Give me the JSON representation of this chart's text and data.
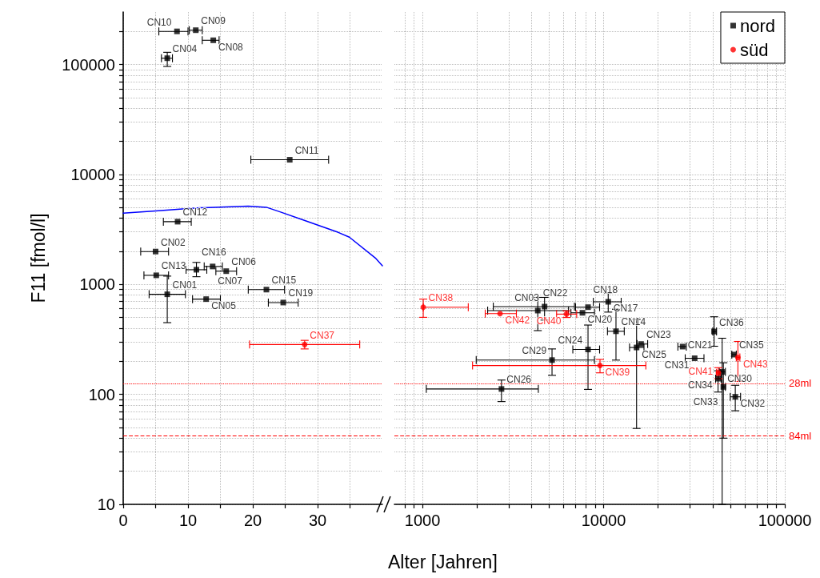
{
  "chart_data": [
    {
      "type": "scatter",
      "ylabel": "F11 [fmol/l]",
      "xlabel": "Alter [Jahren]",
      "log": "y",
      "grid": true,
      "legend": false,
      "xlim": [
        0,
        40
      ],
      "xticks": [
        0,
        {
          "value": 5,
          "label": null
        },
        10,
        {
          "value": 15,
          "label": null
        },
        20,
        {
          "value": 25,
          "label": null
        },
        30,
        {
          "value": 35,
          "label": null
        }
      ],
      "ylim": [
        10,
        300000
      ],
      "yticks": [
        10,
        {
          "value": 20,
          "label": null
        },
        {
          "value": 30,
          "label": null
        },
        {
          "value": 40,
          "label": null
        },
        {
          "value": 50,
          "label": null
        },
        {
          "value": 60,
          "label": null
        },
        {
          "value": 70,
          "label": null
        },
        {
          "value": 80,
          "label": null
        },
        {
          "value": 90,
          "label": null
        },
        100,
        {
          "value": 200,
          "label": null
        },
        {
          "value": 300,
          "label": null
        },
        {
          "value": 400,
          "label": null
        },
        {
          "value": 500,
          "label": null
        },
        {
          "value": 600,
          "label": null
        },
        {
          "value": 700,
          "label": null
        },
        {
          "value": 800,
          "label": null
        },
        {
          "value": 900,
          "label": null
        },
        1000,
        {
          "value": 2000,
          "label": null
        },
        {
          "value": 3000,
          "label": null
        },
        {
          "value": 4000,
          "label": null
        },
        {
          "value": 5000,
          "label": null
        },
        {
          "value": 6000,
          "label": null
        },
        {
          "value": 7000,
          "label": null
        },
        {
          "value": 8000,
          "label": null
        },
        {
          "value": 9000,
          "label": null
        },
        10000,
        {
          "value": 20000,
          "label": null
        },
        {
          "value": 30000,
          "label": null
        },
        {
          "value": 40000,
          "label": null
        },
        {
          "value": 50000,
          "label": null
        },
        {
          "value": 60000,
          "label": null
        },
        {
          "value": 70000,
          "label": null
        },
        {
          "value": 80000,
          "label": null
        },
        {
          "value": 90000,
          "label": null
        },
        100000,
        {
          "value": 200000,
          "label": null
        }
      ],
      "ref_lines": [
        {
          "axis": "y",
          "value": 126,
          "label": null,
          "color": "#ff0000",
          "line_style": "dotted"
        },
        {
          "axis": "y",
          "value": 42,
          "label": null,
          "color": "#ff0000",
          "line_style": "dashed"
        }
      ],
      "series": [
        {
          "color": "#000000",
          "marker": "square",
          "x": [
            8.3,
            11.2,
            13.9,
            6.8,
            25.7,
            8.4,
            5.0,
            5.1,
            6.8,
            11.3,
            13.8,
            15.9,
            12.8,
            22.1,
            24.7
          ],
          "values": [
            200000,
            205000,
            166000,
            114000,
            13600,
            3720,
            1990,
            1210,
            813,
            1360,
            1456,
            1320,
            735,
            897,
            684
          ],
          "value_labels": [
            "CN10",
            "CN09",
            "CN08",
            "CN04",
            "CN11",
            "CN12",
            "CN02",
            "CN13",
            "CN01",
            "CN16",
            "CN07",
            "CN06",
            "CN05",
            "CN15",
            "CN19"
          ],
          "xerrors": [
            [
              5.5,
              10.0
            ],
            [
              10.2,
              12.2
            ],
            [
              12.2,
              14.8
            ],
            [
              5.9,
              7.6
            ],
            [
              19.7,
              31.7
            ],
            [
              6.2,
              10.5
            ],
            [
              2.7,
              7.0
            ],
            [
              3.2,
              7.0
            ],
            [
              4.0,
              9.6
            ],
            [
              9.7,
              12.9
            ],
            [
              12.5,
              15.3
            ],
            [
              14.3,
              17.5
            ],
            [
              10.7,
              15.0
            ],
            [
              19.3,
              24.9
            ],
            [
              22.4,
              27.0
            ]
          ],
          "errors": [
            null,
            null,
            null,
            [
              96000,
              129000
            ],
            null,
            null,
            null,
            null,
            [
              449,
              1190
            ],
            [
              1175,
              1585
            ],
            null,
            null,
            null,
            null,
            null
          ]
        },
        {
          "color": "#ff0000",
          "marker": "circle",
          "x": [
            28.0
          ],
          "values": [
            284
          ],
          "value_labels": [
            "CN37"
          ],
          "xerrors": [
            [
              19.5,
              36.5
            ]
          ],
          "errors": [
            [
              259,
              310
            ]
          ]
        },
        {
          "type": "line",
          "color": "#0000ff",
          "marker": "none",
          "x": [
            0,
            5,
            10,
            11.9,
            19.3,
            22.1,
            24.2,
            28.3,
            33.2,
            34.9,
            39.0,
            40
          ],
          "values": [
            4450,
            4650,
            4900,
            4980,
            5140,
            5030,
            4570,
            3760,
            2970,
            2690,
            1720,
            1480
          ]
        }
      ]
    },
    {
      "type": "scatter",
      "log": "xy",
      "grid": true,
      "legend": "top right",
      "tick_labels": "x",
      "xlim": [
        700,
        100000
      ],
      "xticks": [
        {
          "value": 800,
          "label": null
        },
        {
          "value": 900,
          "label": null
        },
        1000,
        {
          "value": 2000,
          "label": null
        },
        {
          "value": 3000,
          "label": null
        },
        {
          "value": 4000,
          "label": null
        },
        {
          "value": 5000,
          "label": null
        },
        {
          "value": 6000,
          "label": null
        },
        {
          "value": 7000,
          "label": null
        },
        {
          "value": 8000,
          "label": null
        },
        {
          "value": 9000,
          "label": null
        },
        10000,
        {
          "value": 20000,
          "label": null
        },
        {
          "value": 30000,
          "label": null
        },
        {
          "value": 40000,
          "label": null
        },
        {
          "value": 50000,
          "label": null
        },
        {
          "value": 60000,
          "label": null
        },
        {
          "value": 70000,
          "label": null
        },
        {
          "value": 80000,
          "label": null
        },
        {
          "value": 90000,
          "label": null
        },
        100000
      ],
      "ylim": [
        10,
        300000
      ],
      "yticks": [
        10,
        {
          "value": 20,
          "label": null
        },
        {
          "value": 30,
          "label": null
        },
        {
          "value": 40,
          "label": null
        },
        {
          "value": 50,
          "label": null
        },
        {
          "value": 60,
          "label": null
        },
        {
          "value": 70,
          "label": null
        },
        {
          "value": 80,
          "label": null
        },
        {
          "value": 90,
          "label": null
        },
        100,
        {
          "value": 200,
          "label": null
        },
        {
          "value": 300,
          "label": null
        },
        {
          "value": 400,
          "label": null
        },
        {
          "value": 500,
          "label": null
        },
        {
          "value": 600,
          "label": null
        },
        {
          "value": 700,
          "label": null
        },
        {
          "value": 800,
          "label": null
        },
        {
          "value": 900,
          "label": null
        },
        1000,
        {
          "value": 2000,
          "label": null
        },
        {
          "value": 3000,
          "label": null
        },
        {
          "value": 4000,
          "label": null
        },
        {
          "value": 5000,
          "label": null
        },
        {
          "value": 6000,
          "label": null
        },
        {
          "value": 7000,
          "label": null
        },
        {
          "value": 8000,
          "label": null
        },
        {
          "value": 9000,
          "label": null
        },
        10000,
        {
          "value": 20000,
          "label": null
        },
        {
          "value": 30000,
          "label": null
        },
        {
          "value": 40000,
          "label": null
        },
        {
          "value": 50000,
          "label": null
        },
        {
          "value": 60000,
          "label": null
        },
        {
          "value": 70000,
          "label": null
        },
        {
          "value": 80000,
          "label": null
        },
        {
          "value": 90000,
          "label": null
        },
        100000,
        {
          "value": 200000,
          "label": null
        }
      ],
      "ref_lines": [
        {
          "axis": "y",
          "value": 126,
          "label": "28ml",
          "color": "#ff0000",
          "line_style": "dotted"
        },
        {
          "axis": "y",
          "value": 42,
          "label": "84ml",
          "color": "#ff0000",
          "line_style": "dashed"
        }
      ],
      "series": [
        {
          "name": "nord",
          "color": "#000000",
          "marker": "square",
          "x": [
            4330,
            4720,
            8200,
            7640,
            10600,
            11700,
            8200,
            5190,
            2730,
            15200,
            16100,
            27300,
            31800,
            40700,
            52400,
            42800,
            45100,
            45800,
            53300
          ],
          "values": [
            578,
            628,
            621,
            552,
            695,
            375,
            256,
            205,
            112,
            267,
            287,
            272,
            213,
            373,
            230,
            139,
            160,
            117,
            95
          ],
          "value_labels": [
            "CN22",
            "CN03",
            "CN18",
            "CN20",
            "CN17",
            "CN14",
            "CN24",
            "CN29",
            "CN26",
            "CN25",
            "CN23",
            "CN21",
            "CN31",
            "CN36",
            "CN35",
            "CN34",
            "CN30",
            "CN33",
            "CN32"
          ],
          "xerrors": [
            [
              2290,
              6400
            ],
            [
              2460,
              6900
            ],
            [
              7000,
              9500
            ],
            [
              6600,
              8900
            ],
            [
              8770,
              12500
            ],
            [
              10500,
              13000
            ],
            [
              6760,
              9500
            ],
            [
              1980,
              8900
            ],
            [
              1050,
              4360
            ],
            [
              13900,
              16700
            ],
            [
              15300,
              17500
            ],
            [
              25700,
              28600
            ],
            [
              28200,
              35800
            ],
            [
              40000,
              42000
            ],
            [
              51000,
              54000
            ],
            [
              41500,
              44500
            ],
            [
              43500,
              47000
            ],
            [
              45000,
              47000
            ],
            [
              50000,
              57000
            ]
          ],
          "errors": [
            [
              380,
              762
            ],
            [
              474,
              762
            ],
            null,
            null,
            [
              560,
              830
            ],
            [
              205,
              594
            ],
            [
              111,
              427
            ],
            [
              149,
              259
            ],
            [
              86,
              135
            ],
            [
              49,
              481
            ],
            null,
            null,
            null,
            [
              274,
              508
            ],
            null,
            [
              105,
              164
            ],
            [
              10,
              324
            ],
            [
              40,
              194
            ],
            [
              71,
              121
            ]
          ]
        },
        {
          "name": "süd",
          "color": "#ff0000",
          "marker": "circle",
          "x": [
            1010,
            2680,
            6240,
            9550,
            55100,
            43000
          ],
          "values": [
            621,
            543,
            537,
            183,
            217,
            157
          ],
          "value_labels": [
            "CN38",
            "CN42",
            "CN40",
            "CN39",
            "CN43",
            "CN41"
          ],
          "xerrors": [
            [
              1010,
              1790
            ],
            [
              2220,
              3300
            ],
            [
              5500,
              7100
            ],
            [
              1890,
              17100
            ],
            [
              54000,
              56500
            ],
            [
              42000,
              44000
            ]
          ],
          "errors": [
            [
              502,
              735
            ],
            null,
            [
              500,
              575
            ],
            [
              157,
              208
            ],
            [
              131,
              303
            ],
            [
              139,
              175
            ]
          ]
        }
      ]
    }
  ]
}
